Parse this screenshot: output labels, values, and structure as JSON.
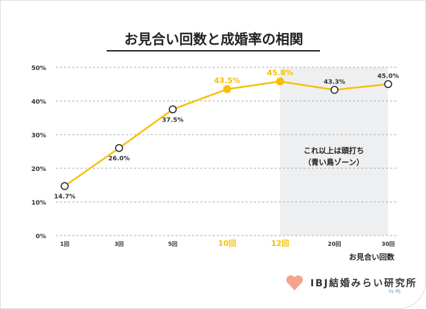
{
  "chart_data": {
    "type": "line",
    "title": "お見合い回数と成婚率の相関",
    "xlabel": "お見合い回数",
    "categories": [
      "1回",
      "3回",
      "5回",
      "10回",
      "12回",
      "20回",
      "30回"
    ],
    "values": [
      14.7,
      26.0,
      37.5,
      43.5,
      45.8,
      43.3,
      45.0
    ],
    "labels": [
      "14.7%",
      "26.0%",
      "37.5%",
      "43.5%",
      "45.8%",
      "43.3%",
      "45.0%"
    ],
    "highlighted_categories": [
      "10回",
      "12回"
    ],
    "yticks": [
      "0%",
      "10%",
      "20%",
      "30%",
      "40%",
      "50%"
    ],
    "ylim": [
      0,
      50
    ],
    "grid": true,
    "shaded_region": {
      "from": "12回",
      "to": "30回",
      "label_lines": [
        "これ以上は頭打ち",
        "（青い鳥ゾーン）"
      ]
    },
    "colors": {
      "line": "#f5c000",
      "highlight": "#f5c000",
      "shade": "#eeeff0",
      "text": "#333333"
    }
  },
  "logo": {
    "text": "IBJ結婚みらい研究所",
    "by": "by IBJ"
  }
}
